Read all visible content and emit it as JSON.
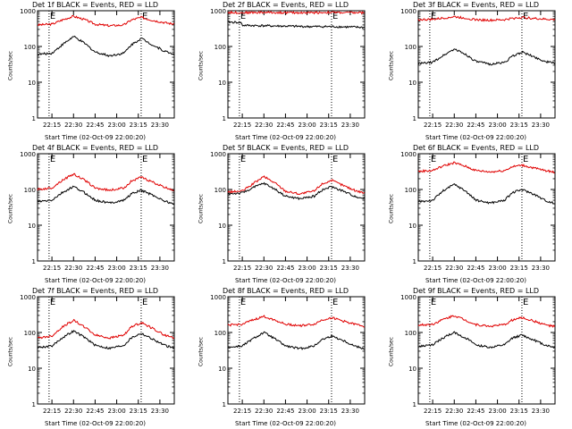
{
  "colors": {
    "events": "#000000",
    "lld": "#e00000",
    "axis": "#000000"
  },
  "chart_data": [
    {
      "type": "line",
      "title": "Det 1f BLACK = Events, RED = LLD",
      "ylabel": "Counts/sec",
      "xlabel": "Start Time (02-Oct-09 22:00:20)",
      "yscale": "log",
      "ylim": [
        1,
        1000
      ],
      "xlim": [
        "22:05",
        "23:40"
      ],
      "y_ticks": [
        "1",
        "10",
        "100",
        "1000"
      ],
      "x_ticks": [
        "22:15",
        "22:30",
        "22:45",
        "23:00",
        "23:15",
        "23:30"
      ],
      "markers": [
        {
          "time": "22:13",
          "label": "E"
        },
        {
          "time": "23:17",
          "label": "E"
        }
      ],
      "series": [
        {
          "role": "lld",
          "x": [
            "22:05",
            "22:15",
            "22:22",
            "22:30",
            "22:38",
            "22:45",
            "22:55",
            "23:05",
            "23:10",
            "23:17",
            "23:25",
            "23:33",
            "23:40"
          ],
          "values": [
            400,
            420,
            550,
            700,
            560,
            420,
            380,
            400,
            550,
            650,
            540,
            470,
            420
          ]
        },
        {
          "role": "events",
          "x": [
            "22:05",
            "22:15",
            "22:22",
            "22:30",
            "22:38",
            "22:45",
            "22:55",
            "23:05",
            "23:10",
            "23:17",
            "23:25",
            "23:33",
            "23:40"
          ],
          "values": [
            60,
            65,
            110,
            190,
            120,
            70,
            55,
            65,
            110,
            170,
            110,
            75,
            60
          ]
        }
      ]
    },
    {
      "type": "line",
      "title": "Det 2f BLACK = Events, RED = LLD",
      "ylabel": "Counts/sec",
      "xlabel": "Start Time (02-Oct-09 22:00:20)",
      "yscale": "log",
      "ylim": [
        1,
        1000
      ],
      "xlim": [
        "22:05",
        "23:40"
      ],
      "y_ticks": [
        "1",
        "10",
        "100",
        "1000"
      ],
      "x_ticks": [
        "22:15",
        "22:30",
        "22:45",
        "23:00",
        "23:15",
        "23:30"
      ],
      "markers": [
        {
          "time": "22:13",
          "label": "E"
        },
        {
          "time": "23:17",
          "label": "E"
        }
      ],
      "series": [
        {
          "role": "lld",
          "x": [
            "22:05",
            "22:15",
            "22:30",
            "22:45",
            "23:00",
            "23:15",
            "23:30",
            "23:40"
          ],
          "values": [
            900,
            880,
            900,
            880,
            880,
            900,
            880,
            880
          ]
        },
        {
          "role": "events",
          "x": [
            "22:05",
            "22:14",
            "22:15",
            "22:30",
            "22:45",
            "23:00",
            "23:15",
            "23:30",
            "23:40"
          ],
          "values": [
            480,
            470,
            390,
            380,
            370,
            360,
            360,
            350,
            340
          ]
        }
      ]
    },
    {
      "type": "line",
      "title": "Det 3f BLACK = Events, RED = LLD",
      "ylabel": "Counts/sec",
      "xlabel": "Start Time (02-Oct-09 22:00:20)",
      "yscale": "log",
      "ylim": [
        1,
        1000
      ],
      "xlim": [
        "22:05",
        "23:40"
      ],
      "y_ticks": [
        "1",
        "10",
        "100",
        "1000"
      ],
      "x_ticks": [
        "22:15",
        "22:30",
        "22:45",
        "23:00",
        "23:15",
        "23:30"
      ],
      "markers": [
        {
          "time": "22:13",
          "label": "E"
        },
        {
          "time": "23:17",
          "label": "E"
        }
      ],
      "series": [
        {
          "role": "lld",
          "x": [
            "22:05",
            "22:15",
            "22:22",
            "22:30",
            "22:38",
            "22:45",
            "22:55",
            "23:05",
            "23:10",
            "23:17",
            "23:25",
            "23:33",
            "23:40"
          ],
          "values": [
            560,
            570,
            620,
            680,
            620,
            560,
            540,
            560,
            610,
            650,
            610,
            580,
            560
          ]
        },
        {
          "role": "events",
          "x": [
            "22:05",
            "22:15",
            "22:22",
            "22:30",
            "22:38",
            "22:45",
            "22:55",
            "23:05",
            "23:10",
            "23:17",
            "23:25",
            "23:33",
            "23:40"
          ],
          "values": [
            33,
            36,
            55,
            85,
            60,
            38,
            32,
            36,
            52,
            70,
            52,
            38,
            34
          ]
        }
      ]
    },
    {
      "type": "line",
      "title": "Det 4f BLACK = Events, RED = LLD",
      "ylabel": "Counts/sec",
      "xlabel": "Start Time (02-Oct-09 22:00:20)",
      "yscale": "log",
      "ylim": [
        1,
        1000
      ],
      "xlim": [
        "22:05",
        "23:40"
      ],
      "y_ticks": [
        "1",
        "10",
        "100",
        "1000"
      ],
      "x_ticks": [
        "22:15",
        "22:30",
        "22:45",
        "23:00",
        "23:15",
        "23:30"
      ],
      "markers": [
        {
          "time": "22:13",
          "label": "E"
        },
        {
          "time": "23:17",
          "label": "E"
        }
      ],
      "series": [
        {
          "role": "lld",
          "x": [
            "22:05",
            "22:15",
            "22:22",
            "22:30",
            "22:38",
            "22:45",
            "22:55",
            "23:05",
            "23:10",
            "23:17",
            "23:25",
            "23:33",
            "23:40"
          ],
          "values": [
            100,
            110,
            180,
            270,
            180,
            110,
            95,
            110,
            170,
            220,
            160,
            115,
            95
          ]
        },
        {
          "role": "events",
          "x": [
            "22:05",
            "22:15",
            "22:22",
            "22:30",
            "22:38",
            "22:45",
            "22:55",
            "23:05",
            "23:10",
            "23:17",
            "23:25",
            "23:33",
            "23:40"
          ],
          "values": [
            45,
            50,
            80,
            120,
            80,
            50,
            42,
            50,
            75,
            95,
            70,
            48,
            38
          ]
        }
      ]
    },
    {
      "type": "line",
      "title": "Det 5f BLACK = Events, RED = LLD",
      "ylabel": "Counts/sec",
      "xlabel": "Start Time (02-Oct-09 22:00:20)",
      "yscale": "log",
      "ylim": [
        1,
        1000
      ],
      "xlim": [
        "22:05",
        "23:40"
      ],
      "y_ticks": [
        "1",
        "10",
        "100",
        "1000"
      ],
      "x_ticks": [
        "22:15",
        "22:30",
        "22:45",
        "23:00",
        "23:15",
        "23:30"
      ],
      "markers": [
        {
          "time": "22:13",
          "label": "E"
        },
        {
          "time": "23:17",
          "label": "E"
        }
      ],
      "series": [
        {
          "role": "lld",
          "x": [
            "22:05",
            "22:15",
            "22:22",
            "22:30",
            "22:38",
            "22:45",
            "22:55",
            "23:05",
            "23:10",
            "23:17",
            "23:25",
            "23:33",
            "23:40"
          ],
          "values": [
            85,
            90,
            140,
            230,
            150,
            90,
            75,
            90,
            140,
            180,
            130,
            95,
            80
          ]
        },
        {
          "role": "events",
          "x": [
            "22:05",
            "22:15",
            "22:22",
            "22:30",
            "22:38",
            "22:45",
            "22:55",
            "23:05",
            "23:10",
            "23:17",
            "23:25",
            "23:33",
            "23:40"
          ],
          "values": [
            75,
            80,
            110,
            150,
            100,
            65,
            55,
            65,
            95,
            120,
            90,
            65,
            55
          ]
        }
      ]
    },
    {
      "type": "line",
      "title": "Det 6f BLACK = Events, RED = LLD",
      "ylabel": "Counts/sec",
      "xlabel": "Start Time (02-Oct-09 22:00:20)",
      "yscale": "log",
      "ylim": [
        1,
        1000
      ],
      "xlim": [
        "22:05",
        "23:40"
      ],
      "y_ticks": [
        "1",
        "10",
        "100",
        "1000"
      ],
      "x_ticks": [
        "22:15",
        "22:30",
        "22:45",
        "23:00",
        "23:15",
        "23:30"
      ],
      "markers": [
        {
          "time": "22:13",
          "label": "E"
        },
        {
          "time": "23:17",
          "label": "E"
        }
      ],
      "series": [
        {
          "role": "lld",
          "x": [
            "22:05",
            "22:15",
            "22:22",
            "22:30",
            "22:38",
            "22:45",
            "22:55",
            "23:05",
            "23:10",
            "23:17",
            "23:25",
            "23:33",
            "23:40"
          ],
          "values": [
            320,
            340,
            450,
            560,
            440,
            340,
            310,
            340,
            430,
            480,
            400,
            340,
            300
          ]
        },
        {
          "role": "events",
          "x": [
            "22:05",
            "22:15",
            "22:22",
            "22:30",
            "22:38",
            "22:45",
            "22:55",
            "23:05",
            "23:10",
            "23:17",
            "23:25",
            "23:33",
            "23:40"
          ],
          "values": [
            45,
            50,
            90,
            140,
            90,
            50,
            42,
            50,
            80,
            100,
            75,
            50,
            40
          ]
        }
      ]
    },
    {
      "type": "line",
      "title": "Det 7f BLACK = Events, RED = LLD",
      "ylabel": "Counts/sec",
      "xlabel": "Start Time (02-Oct-09 22:00:20)",
      "yscale": "log",
      "ylim": [
        1,
        1000
      ],
      "xlim": [
        "22:05",
        "23:40"
      ],
      "y_ticks": [
        "1",
        "10",
        "100",
        "1000"
      ],
      "x_ticks": [
        "22:15",
        "22:30",
        "22:45",
        "23:00",
        "23:15",
        "23:30"
      ],
      "markers": [
        {
          "time": "22:13",
          "label": "E"
        },
        {
          "time": "23:17",
          "label": "E"
        }
      ],
      "series": [
        {
          "role": "lld",
          "x": [
            "22:05",
            "22:15",
            "22:22",
            "22:30",
            "22:38",
            "22:45",
            "22:55",
            "23:05",
            "23:10",
            "23:17",
            "23:25",
            "23:33",
            "23:40"
          ],
          "values": [
            70,
            80,
            140,
            220,
            140,
            85,
            70,
            85,
            140,
            190,
            130,
            85,
            70
          ]
        },
        {
          "role": "events",
          "x": [
            "22:05",
            "22:15",
            "22:22",
            "22:30",
            "22:38",
            "22:45",
            "22:55",
            "23:05",
            "23:10",
            "23:17",
            "23:25",
            "23:33",
            "23:40"
          ],
          "values": [
            38,
            42,
            70,
            110,
            72,
            44,
            36,
            44,
            70,
            95,
            65,
            44,
            36
          ]
        }
      ]
    },
    {
      "type": "line",
      "title": "Det 8f BLACK = Events, RED = LLD",
      "ylabel": "Counts/sec",
      "xlabel": "Start Time (02-Oct-09 22:00:20)",
      "yscale": "log",
      "ylim": [
        1,
        1000
      ],
      "xlim": [
        "22:05",
        "23:40"
      ],
      "y_ticks": [
        "1",
        "10",
        "100",
        "1000"
      ],
      "x_ticks": [
        "22:15",
        "22:30",
        "22:45",
        "23:00",
        "23:15",
        "23:30"
      ],
      "markers": [
        {
          "time": "22:13",
          "label": "E"
        },
        {
          "time": "23:17",
          "label": "E"
        }
      ],
      "series": [
        {
          "role": "lld",
          "x": [
            "22:05",
            "22:15",
            "22:22",
            "22:30",
            "22:38",
            "22:45",
            "22:55",
            "23:05",
            "23:10",
            "23:17",
            "23:25",
            "23:33",
            "23:40"
          ],
          "values": [
            160,
            170,
            220,
            280,
            220,
            170,
            155,
            170,
            220,
            260,
            210,
            170,
            150
          ]
        },
        {
          "role": "events",
          "x": [
            "22:05",
            "22:15",
            "22:22",
            "22:30",
            "22:38",
            "22:45",
            "22:55",
            "23:05",
            "23:10",
            "23:17",
            "23:25",
            "23:33",
            "23:40"
          ],
          "values": [
            38,
            42,
            65,
            100,
            65,
            42,
            35,
            42,
            62,
            80,
            60,
            42,
            35
          ]
        }
      ]
    },
    {
      "type": "line",
      "title": "Det 9f BLACK = Events, RED = LLD",
      "ylabel": "Counts/sec",
      "xlabel": "Start Time (02-Oct-09 22:00:20)",
      "yscale": "log",
      "ylim": [
        1,
        1000
      ],
      "xlim": [
        "22:05",
        "23:40"
      ],
      "y_ticks": [
        "1",
        "10",
        "100",
        "1000"
      ],
      "x_ticks": [
        "22:15",
        "22:30",
        "22:45",
        "23:00",
        "23:15",
        "23:30"
      ],
      "markers": [
        {
          "time": "22:13",
          "label": "E"
        },
        {
          "time": "23:17",
          "label": "E"
        }
      ],
      "series": [
        {
          "role": "lld",
          "x": [
            "22:05",
            "22:15",
            "22:22",
            "22:30",
            "22:38",
            "22:45",
            "22:55",
            "23:05",
            "23:10",
            "23:17",
            "23:25",
            "23:33",
            "23:40"
          ],
          "values": [
            160,
            170,
            230,
            300,
            220,
            165,
            150,
            165,
            220,
            260,
            210,
            165,
            145
          ]
        },
        {
          "role": "events",
          "x": [
            "22:05",
            "22:15",
            "22:22",
            "22:30",
            "22:38",
            "22:45",
            "22:55",
            "23:05",
            "23:10",
            "23:17",
            "23:25",
            "23:33",
            "23:40"
          ],
          "values": [
            40,
            45,
            70,
            100,
            70,
            45,
            38,
            45,
            68,
            85,
            62,
            45,
            38
          ]
        }
      ]
    }
  ]
}
